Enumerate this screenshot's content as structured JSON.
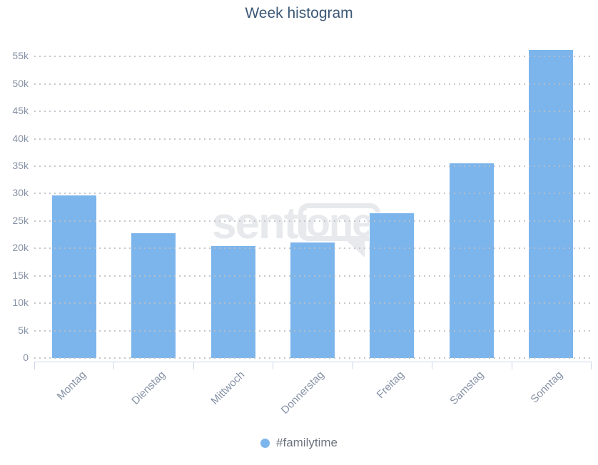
{
  "chart_data": {
    "type": "bar",
    "title": "Week histogram",
    "categories": [
      "Montag",
      "Dienstag",
      "Mittwoch",
      "Donnerstag",
      "Freitag",
      "Samstag",
      "Sonntag"
    ],
    "series": [
      {
        "name": "#familytime",
        "color": "#7cb5ec",
        "values": [
          29800,
          22900,
          20600,
          21200,
          26500,
          35600,
          56300
        ]
      }
    ],
    "ylim": [
      0,
      57500
    ],
    "ytick_interval": 5000,
    "ytick_labels": [
      "0",
      "5k",
      "10k",
      "15k",
      "20k",
      "25k",
      "30k",
      "35k",
      "40k",
      "45k",
      "50k",
      "55k"
    ],
    "xlabel": "",
    "ylabel": "",
    "grid": "horizontal-dotted",
    "legend_position": "bottom-center"
  },
  "legend": {
    "items": [
      {
        "label": "#familytime",
        "marker_color": "#7cb5ec"
      }
    ]
  },
  "watermark": {
    "text_left": "senti",
    "text_boxed": "one"
  },
  "colors": {
    "bar": "#7cb5ec",
    "bar_border": "#ffffff",
    "title_text": "#3c5876",
    "axis_label_text": "#8691a5",
    "legend_text": "#6d737f",
    "axis_line": "#ccd6eb",
    "gridline": "#c9cdd4",
    "watermark": "#e7e9ec",
    "background": "#ffffff"
  }
}
